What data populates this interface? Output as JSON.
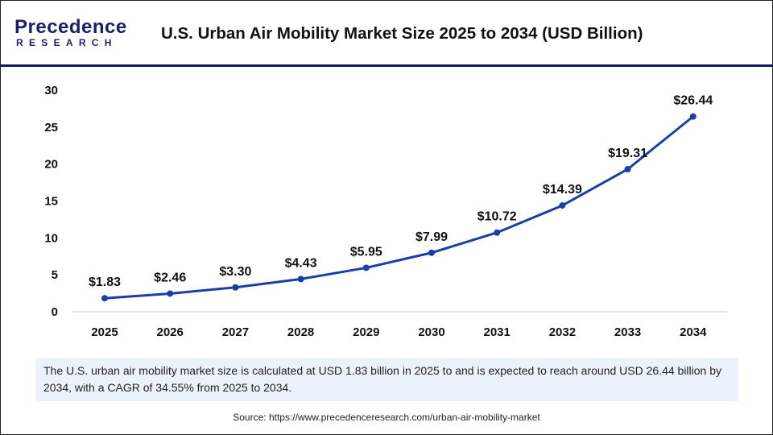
{
  "logo": {
    "line1": "Precedence",
    "line2": "RESEARCH"
  },
  "colors": {
    "line": "#1a3ea8",
    "header_rule": "#14185a",
    "note_bg": "#eaf2fb"
  },
  "chart_data": {
    "type": "line",
    "title": "U.S. Urban Air Mobility Market Size 2025 to 2034 (USD Billion)",
    "categories": [
      "2025",
      "2026",
      "2027",
      "2028",
      "2029",
      "2030",
      "2031",
      "2032",
      "2033",
      "2034"
    ],
    "values": [
      1.83,
      2.46,
      3.3,
      4.43,
      5.95,
      7.99,
      10.72,
      14.39,
      19.31,
      26.44
    ],
    "data_labels": [
      "$1.83",
      "$2.46",
      "$3.30",
      "$4.43",
      "$5.95",
      "$7.99",
      "$10.72",
      "$14.39",
      "$19.31",
      "$26.44"
    ],
    "yticks": [
      0,
      5,
      10,
      15,
      20,
      25,
      30
    ],
    "ylim": [
      0,
      30
    ],
    "grid": false,
    "xlabel": "",
    "ylabel": ""
  },
  "note": "The U.S. urban air mobility market size is calculated at USD 1.83 billion in 2025 to and is expected to reach around USD 26.44 billion by 2034, with a CAGR of 34.55% from 2025 to 2034.",
  "source": "Source: https://www.precedenceresearch.com/urban-air-mobility-market"
}
